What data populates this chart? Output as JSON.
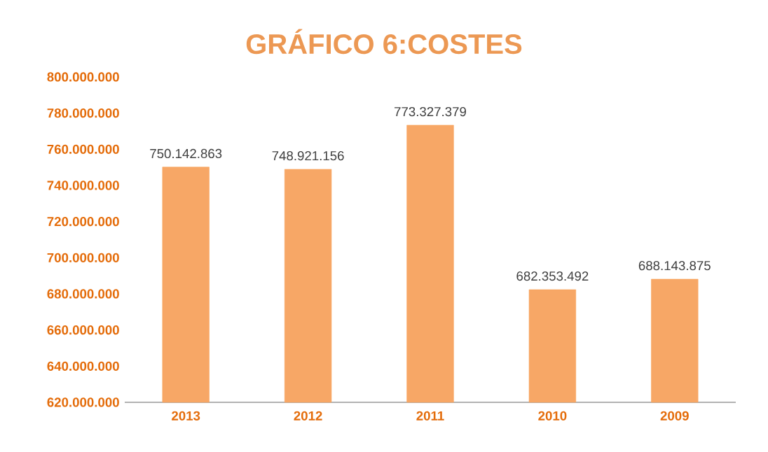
{
  "chart_data": {
    "type": "bar",
    "title": "GRÁFICO 6:COSTES",
    "categories": [
      "2013",
      "2012",
      "2011",
      "2010",
      "2009"
    ],
    "values": [
      750142863,
      748921156,
      773327379,
      682353492,
      688143875
    ],
    "value_labels": [
      "750.142.863",
      "748.921.156",
      "773.327.379",
      "682.353.492",
      "688.143.875"
    ],
    "color": "#f7a766",
    "ylim": [
      620000000,
      800000000
    ],
    "yticks": [
      {
        "value": 620000000,
        "label": "620.000.000"
      },
      {
        "value": 640000000,
        "label": "640.000.000"
      },
      {
        "value": 660000000,
        "label": "660.000.000"
      },
      {
        "value": 680000000,
        "label": "680.000.000"
      },
      {
        "value": 700000000,
        "label": "700.000.000"
      },
      {
        "value": 720000000,
        "label": "720.000.000"
      },
      {
        "value": 740000000,
        "label": "740.000.000"
      },
      {
        "value": 760000000,
        "label": "760.000.000"
      },
      {
        "value": 780000000,
        "label": "780.000.000"
      },
      {
        "value": 800000000,
        "label": "800.000.000"
      }
    ]
  }
}
